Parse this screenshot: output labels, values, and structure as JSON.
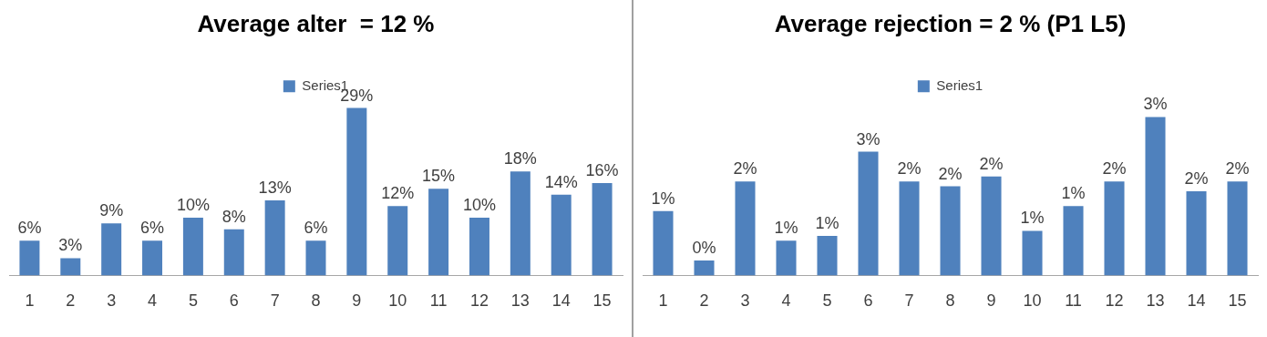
{
  "chart_data": [
    {
      "type": "bar",
      "title": "Average alter  = 12 %",
      "categories": [
        "1",
        "2",
        "3",
        "4",
        "5",
        "6",
        "7",
        "8",
        "9",
        "10",
        "11",
        "12",
        "13",
        "14",
        "15"
      ],
      "series": [
        {
          "name": "Series1",
          "color": "#4f81bd",
          "values": [
            6,
            3,
            9,
            6,
            10,
            8,
            13,
            6,
            29,
            12,
            15,
            10,
            18,
            14,
            16
          ],
          "value_labels": [
            "6%",
            "3%",
            "9%",
            "6%",
            "10%",
            "8%",
            "13%",
            "6%",
            "29%",
            "12%",
            "15%",
            "10%",
            "18%",
            "14%",
            "16%"
          ]
        }
      ],
      "legend": "top",
      "grid": false,
      "data_labels": true,
      "tick_labels": "x"
    },
    {
      "type": "bar",
      "title": "Average rejection = 2 % (P1 L5)",
      "categories": [
        "1",
        "2",
        "3",
        "4",
        "5",
        "6",
        "7",
        "8",
        "9",
        "10",
        "11",
        "12",
        "13",
        "14",
        "15"
      ],
      "series": [
        {
          "name": "Series1",
          "color": "#4f81bd",
          "values": [
            1.3,
            0.3,
            1.9,
            0.7,
            0.8,
            2.5,
            1.9,
            1.8,
            2.0,
            0.9,
            1.4,
            1.9,
            3.2,
            1.7,
            1.9
          ],
          "value_labels": [
            "1%",
            "0%",
            "2%",
            "1%",
            "1%",
            "3%",
            "2%",
            "2%",
            "2%",
            "1%",
            "1%",
            "2%",
            "3%",
            "2%",
            "2%"
          ]
        }
      ],
      "legend": "top",
      "grid": false,
      "data_labels": true,
      "tick_labels": "x"
    }
  ]
}
